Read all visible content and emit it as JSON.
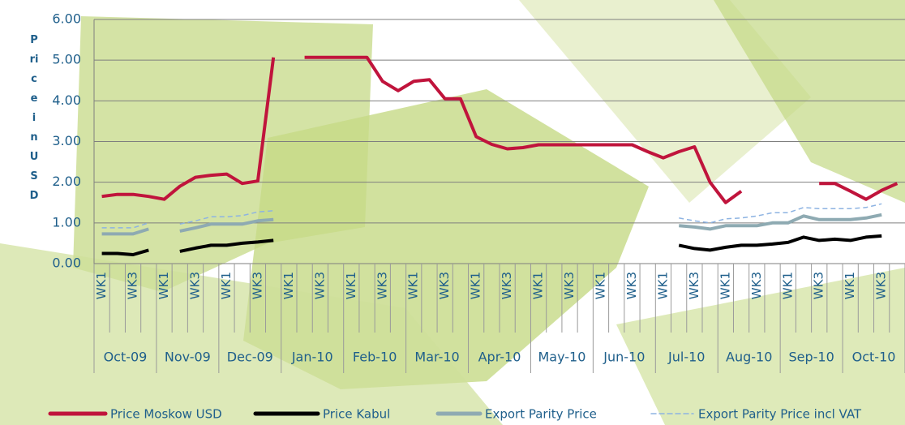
{
  "chart_data": {
    "type": "line",
    "y_label": "Price in USD",
    "ylim": [
      0,
      6
    ],
    "yticks": [
      {
        "value": 0,
        "label": "0.00"
      },
      {
        "value": 1,
        "label": "1.00"
      },
      {
        "value": 2,
        "label": "2.00"
      },
      {
        "value": 3,
        "label": "3.00"
      },
      {
        "value": 4,
        "label": "4.00"
      },
      {
        "value": 5,
        "label": "5.00"
      },
      {
        "value": 6,
        "label": "6.00"
      }
    ],
    "grid": true,
    "legend": "bottom",
    "categories": [
      "WK1",
      null,
      "WK3",
      null,
      "WK1",
      null,
      "WK3",
      null,
      "WK1",
      null,
      "WK3",
      null,
      "WK1",
      null,
      "WK3",
      null,
      "WK1",
      null,
      "WK3",
      null,
      "WK1",
      null,
      "WK3",
      null,
      "WK1",
      null,
      "WK3",
      null,
      "WK1",
      null,
      "WK3",
      null,
      "WK1",
      null,
      "WK3",
      null,
      "WK1",
      null,
      "WK3",
      null,
      "WK1",
      null,
      "WK3",
      null,
      "WK1",
      null,
      "WK3",
      null,
      "WK1",
      null,
      "WK3",
      null
    ],
    "months": [
      "Oct-09",
      "Nov-09",
      "Dec-09",
      "Jan-10",
      "Feb-10",
      "Mar-10",
      "Apr-10",
      "May-10",
      "Jun-10",
      "Jul-10",
      "Aug-10",
      "Sep-10",
      "Oct-10"
    ],
    "series": [
      {
        "name": "Price Moskow USD",
        "color": "#c0143c",
        "dash": false,
        "values": [
          1.65,
          1.7,
          1.7,
          1.65,
          1.58,
          1.9,
          2.12,
          2.17,
          2.2,
          1.97,
          2.03,
          5.07,
          null,
          5.07,
          5.07,
          5.07,
          5.07,
          5.07,
          4.48,
          4.25,
          4.48,
          4.52,
          4.05,
          4.05,
          3.12,
          2.93,
          2.82,
          2.85,
          2.92,
          2.92,
          2.92,
          2.92,
          2.92,
          2.92,
          2.92,
          2.75,
          2.6,
          2.75,
          2.87,
          2.0,
          1.5,
          1.78,
          null,
          null,
          null,
          null,
          1.97,
          1.97,
          1.78,
          1.58,
          1.8,
          1.97
        ]
      },
      {
        "name": "Price Kabul",
        "color": "#000000",
        "dash": false,
        "values": [
          0.25,
          0.25,
          0.22,
          0.33,
          null,
          0.3,
          0.38,
          0.45,
          0.45,
          0.5,
          0.53,
          0.57,
          null,
          null,
          null,
          null,
          null,
          null,
          null,
          null,
          null,
          null,
          null,
          null,
          null,
          null,
          null,
          null,
          null,
          null,
          null,
          null,
          null,
          null,
          null,
          null,
          null,
          0.45,
          0.37,
          0.33,
          0.4,
          0.45,
          0.45,
          0.48,
          0.52,
          0.65,
          0.57,
          0.6,
          0.57,
          0.65,
          0.68,
          null
        ]
      },
      {
        "name": "Export Parity Price",
        "color": "#8eaab2",
        "dash": false,
        "values": [
          0.73,
          0.73,
          0.73,
          0.85,
          null,
          0.8,
          0.88,
          0.97,
          0.97,
          0.97,
          1.05,
          1.08,
          null,
          null,
          null,
          null,
          null,
          null,
          null,
          null,
          null,
          null,
          null,
          null,
          null,
          null,
          null,
          null,
          null,
          null,
          null,
          null,
          null,
          null,
          null,
          null,
          null,
          0.93,
          0.9,
          0.85,
          0.93,
          0.93,
          0.93,
          1.0,
          1.0,
          1.17,
          1.08,
          1.08,
          1.08,
          1.12,
          1.2,
          null
        ]
      },
      {
        "name": "Export Parity Price incl VAT",
        "color": "#8db3e2",
        "dash": true,
        "values": [
          0.88,
          0.88,
          0.88,
          1.0,
          null,
          0.97,
          1.05,
          1.15,
          1.15,
          1.18,
          1.27,
          1.3,
          null,
          null,
          null,
          null,
          null,
          null,
          null,
          null,
          null,
          null,
          null,
          null,
          null,
          null,
          null,
          null,
          null,
          null,
          null,
          null,
          null,
          null,
          null,
          null,
          null,
          1.12,
          1.05,
          1.0,
          1.1,
          1.12,
          1.17,
          1.25,
          1.25,
          1.38,
          1.35,
          1.35,
          1.35,
          1.38,
          1.47,
          null
        ]
      }
    ]
  }
}
